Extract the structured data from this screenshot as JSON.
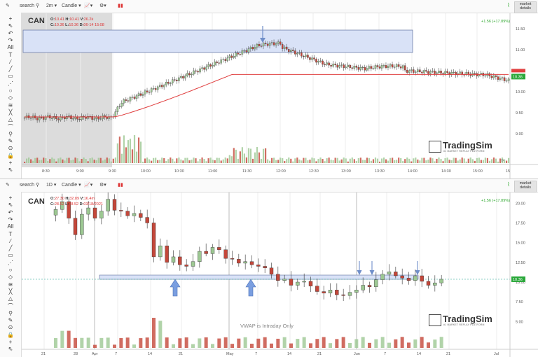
{
  "colors": {
    "up": "#9dc893",
    "down": "#c4473a",
    "vwap": "#e04040",
    "zone": "#d9e2f7",
    "zone_border": "#6f7fa8",
    "arrow": "#6f8ec9",
    "premarket": "#d6d6d6",
    "price_tag": "#2aa83a"
  },
  "top": {
    "toolbar": {
      "search_label": "search",
      "interval": "2m",
      "chart_type": "Candle",
      "market_details": [
        "market",
        "details"
      ]
    },
    "symbol": "CAN",
    "ohlc": {
      "o_label": "O:",
      "o": "10.41",
      "h_label": "H:",
      "h": "10.41",
      "v_label": "V:",
      "v": "26.2k",
      "c_label": "C:",
      "c": "10.36",
      "l_label": "L:",
      "l": "10.36",
      "d_label": "D:",
      "d": "06-14 15:08"
    },
    "change": "+1.56 (+17.89%)",
    "price_axis": [
      "11.50",
      "11.00",
      "10.50",
      "10.00",
      "9.50",
      "9.00"
    ],
    "last_price": "10.36",
    "time_axis": [
      "8:30",
      "9:00",
      "9:30",
      "10:00",
      "10:30",
      "11:00",
      "11:30",
      "12:00",
      "12:30",
      "13:00",
      "13:30",
      "14:00",
      "14:30",
      "15:00",
      "15"
    ],
    "logo": {
      "name": "TradingSim",
      "tagline": "#1 MARKET REPLAY PLATFORM"
    },
    "scroll_label": "»"
  },
  "bottom": {
    "toolbar": {
      "search_label": "search",
      "interval": "1D",
      "chart_type": "Candle",
      "market_details": [
        "market",
        "details"
      ]
    },
    "symbol": "CAN",
    "ohlc": {
      "o_label": "O:",
      "o": "27.30",
      "h_label": "H:",
      "h": "32.89",
      "v_label": "V:",
      "v": "16.4m",
      "c_label": "C:",
      "c": "28.52",
      "l_label": "L:",
      "l": "28.52",
      "d_label": "D:",
      "d": "03/18/2021"
    },
    "change": "+1.56 (+17.89%)",
    "price_axis": [
      "20.00",
      "17.50",
      "15.00",
      "12.50",
      "10.00",
      "7.50",
      "5.00"
    ],
    "last_price": "10.36",
    "date_axis": [
      "21",
      "28",
      "Apr",
      "7",
      "14",
      "21",
      "May",
      "7",
      "14",
      "21",
      "Jun",
      "7",
      "14",
      "21",
      "Jul"
    ],
    "vwap_note": "VWAP is Intraday Only",
    "logo": {
      "name": "TradingSim",
      "tagline": "#1 MARKET REPLAY PLATFORM"
    }
  },
  "sidebar_tools": [
    "cursor-tool",
    "undo-tool",
    "redo-tool",
    "all-tools",
    "text-tool",
    "trendline-tool",
    "ray-tool",
    "channel-tool",
    "fib-tool",
    "shape-tool",
    "pattern-tool",
    "measure-tool",
    "brush-tool",
    "magnet-tool"
  ],
  "sidebar_all_label": "All"
}
